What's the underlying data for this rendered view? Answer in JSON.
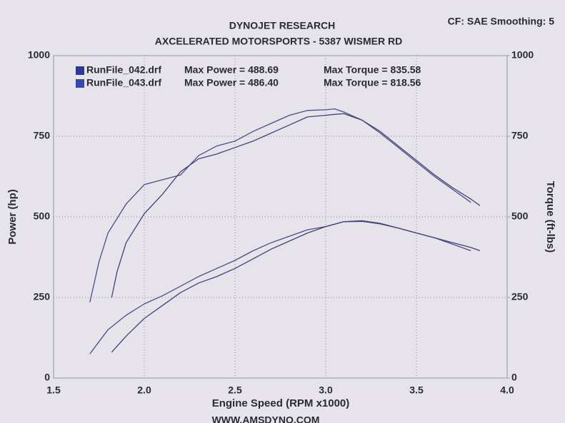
{
  "chart_data": {
    "type": "line",
    "title": "DYNOJET RESEARCH",
    "subtitle": "AXCELERATED MOTORSPORTS  - 5387 WISMER RD",
    "corner_note": "CF: SAE  Smoothing: 5",
    "footer": "WWW.AMSDYNO.COM",
    "x_label": "Engine Speed (RPM x1000)",
    "y_label": "Power (hp)",
    "y2_label": "Torque (ft-lbs)",
    "xlim": [
      1.5,
      4.0
    ],
    "xticks": [
      1.5,
      {
        "value": 2,
        "label": "2.0"
      },
      2.5,
      {
        "value": 3,
        "label": "3.0"
      },
      3.5,
      {
        "value": 4,
        "label": "4.0"
      }
    ],
    "ylim": [
      0,
      1000
    ],
    "yticks": [
      0,
      250,
      500,
      750,
      1000
    ],
    "y2lim": [
      0,
      1000
    ],
    "y2ticks": [
      0,
      250,
      500,
      750,
      1000
    ],
    "grid": true,
    "legend": [
      {
        "file": "RunFile_042.drf",
        "power": "Max Power = 488.69",
        "torque": "Max Torque = 835.58",
        "color": "#2c3a9a"
      },
      {
        "file": "RunFile_043.drf",
        "power": "Max Power = 486.40",
        "torque": "Max Torque = 818.56",
        "color": "#3a48a8"
      }
    ],
    "series": [
      {
        "color": "#4b4d86",
        "x": [
          1.7,
          1.8,
          1.9,
          2.0,
          2.1,
          2.2,
          2.3,
          2.4,
          2.5,
          2.6,
          2.7,
          2.8,
          2.9,
          3.0,
          3.1,
          3.2,
          3.3,
          3.4,
          3.5,
          3.6,
          3.7,
          3.8
        ],
        "values": [
          75,
          150,
          195,
          230,
          255,
          285,
          315,
          340,
          365,
          395,
          420,
          440,
          460,
          470,
          485,
          488,
          480,
          465,
          450,
          435,
          415,
          395
        ]
      },
      {
        "color": "#3f4178",
        "x": [
          1.82,
          1.9,
          2.0,
          2.1,
          2.2,
          2.3,
          2.4,
          2.5,
          2.6,
          2.7,
          2.8,
          2.9,
          3.0,
          3.1,
          3.2,
          3.3,
          3.4,
          3.5,
          3.6,
          3.7,
          3.8,
          3.85
        ],
        "values": [
          80,
          130,
          185,
          225,
          265,
          295,
          315,
          340,
          370,
          400,
          425,
          450,
          470,
          485,
          486,
          478,
          465,
          450,
          435,
          420,
          405,
          395
        ]
      },
      {
        "color": "#4b4d86",
        "axis": "y2",
        "x": [
          1.7,
          1.75,
          1.8,
          1.9,
          2.0,
          2.1,
          2.2,
          2.3,
          2.4,
          2.5,
          2.6,
          2.7,
          2.8,
          2.9,
          3.0,
          3.05,
          3.1,
          3.2,
          3.3,
          3.4,
          3.5,
          3.6,
          3.7,
          3.8
        ],
        "values": [
          235,
          360,
          450,
          540,
          600,
          615,
          630,
          690,
          720,
          735,
          765,
          790,
          815,
          830,
          832,
          835,
          825,
          800,
          760,
          715,
          670,
          625,
          585,
          545
        ]
      },
      {
        "color": "#3f4178",
        "axis": "y2",
        "x": [
          1.82,
          1.85,
          1.9,
          2.0,
          2.1,
          2.2,
          2.3,
          2.4,
          2.5,
          2.6,
          2.7,
          2.8,
          2.9,
          3.0,
          3.05,
          3.1,
          3.2,
          3.3,
          3.4,
          3.5,
          3.6,
          3.7,
          3.8,
          3.85
        ],
        "values": [
          250,
          330,
          420,
          510,
          570,
          640,
          680,
          695,
          715,
          735,
          760,
          785,
          810,
          815,
          818,
          820,
          800,
          765,
          720,
          675,
          630,
          590,
          555,
          535
        ]
      }
    ]
  }
}
